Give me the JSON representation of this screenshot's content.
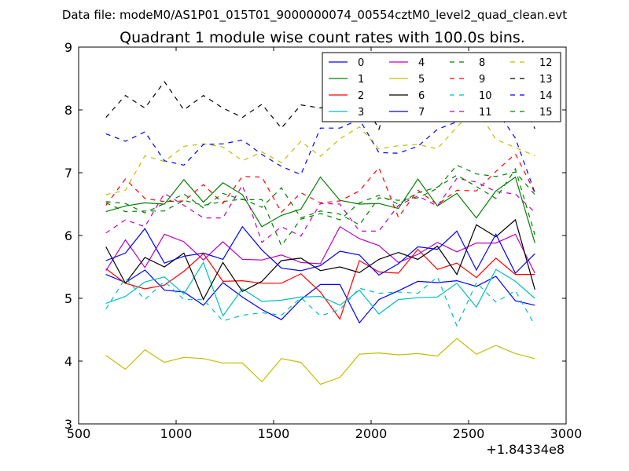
{
  "suptitle": "Data file: modeM0/AS1P01_015T01_9000000074_00554cztM0_level2_quad_clean.evt",
  "chart_data": {
    "type": "line",
    "title": "Quadrant 1 module wise count rates with 100.0s bins.",
    "xlabel": "",
    "ylabel": "",
    "x_offset_label": "+1.84334e8",
    "xlim": [
      500,
      3000
    ],
    "ylim": [
      3,
      9
    ],
    "xticks": [
      500,
      1000,
      1500,
      2000,
      2500,
      3000
    ],
    "yticks": [
      3,
      4,
      5,
      6,
      7,
      8,
      9
    ],
    "legend_position": "top-right",
    "x": [
      640,
      740,
      840,
      940,
      1040,
      1140,
      1240,
      1340,
      1440,
      1540,
      1640,
      1740,
      1840,
      1940,
      2040,
      2140,
      2240,
      2340,
      2440,
      2540,
      2640,
      2740,
      2840
    ],
    "series": [
      {
        "name": "0",
        "color": "#0000ff",
        "dash": "solid",
        "values": [
          5.38,
          5.25,
          5.45,
          5.13,
          5.1,
          4.89,
          5.25,
          5.02,
          4.82,
          4.66,
          4.98,
          5.22,
          5.22,
          4.61,
          4.98,
          5.12,
          5.27,
          5.25,
          5.28,
          5.19,
          5.35,
          4.96,
          4.89
        ]
      },
      {
        "name": "1",
        "color": "#008000",
        "dash": "solid",
        "values": [
          6.38,
          6.47,
          6.52,
          6.5,
          6.89,
          6.53,
          6.84,
          6.65,
          6.14,
          6.32,
          6.42,
          6.93,
          6.56,
          6.5,
          6.51,
          6.43,
          6.9,
          6.47,
          6.67,
          6.28,
          6.71,
          6.93,
          5.88
        ]
      },
      {
        "name": "2",
        "color": "#ff0000",
        "dash": "solid",
        "values": [
          5.47,
          5.24,
          5.15,
          5.21,
          5.43,
          5.71,
          5.27,
          5.28,
          5.24,
          5.24,
          5.39,
          5.1,
          4.67,
          5.6,
          5.42,
          5.4,
          5.78,
          5.46,
          5.56,
          5.33,
          5.64,
          5.38,
          5.38
        ]
      },
      {
        "name": "3",
        "color": "#00bfbf",
        "dash": "solid",
        "values": [
          4.92,
          5.03,
          5.26,
          5.34,
          5.07,
          5.57,
          4.72,
          5.15,
          4.95,
          4.97,
          5.02,
          5.03,
          4.89,
          5.13,
          4.75,
          4.98,
          5.01,
          5.02,
          5.24,
          4.86,
          5.46,
          5.27,
          5.0
        ]
      },
      {
        "name": "4",
        "color": "#bf00bf",
        "dash": "solid",
        "values": [
          5.44,
          5.93,
          5.49,
          6.02,
          5.9,
          5.61,
          5.9,
          5.62,
          5.61,
          5.69,
          5.57,
          5.55,
          6.14,
          5.95,
          5.84,
          5.57,
          5.7,
          5.89,
          5.74,
          5.88,
          5.88,
          6.02,
          5.4
        ]
      },
      {
        "name": "5",
        "color": "#bfbf00",
        "dash": "solid",
        "values": [
          4.09,
          3.87,
          4.18,
          3.98,
          4.06,
          4.04,
          3.97,
          3.97,
          3.67,
          4.04,
          3.98,
          3.63,
          3.74,
          4.11,
          4.13,
          4.1,
          4.12,
          4.08,
          4.36,
          4.11,
          4.25,
          4.12,
          4.04
        ]
      },
      {
        "name": "6",
        "color": "#000000",
        "dash": "solid",
        "values": [
          5.82,
          5.24,
          5.65,
          5.5,
          5.72,
          4.98,
          5.57,
          5.11,
          5.27,
          5.6,
          5.64,
          5.44,
          5.5,
          5.41,
          5.62,
          5.73,
          5.62,
          5.83,
          5.38,
          6.17,
          5.98,
          6.25,
          5.14
        ]
      },
      {
        "name": "7",
        "color": "#0000ff",
        "dash": "solid",
        "values": [
          5.6,
          5.72,
          6.11,
          5.56,
          5.67,
          5.72,
          5.62,
          6.14,
          5.77,
          5.48,
          5.44,
          5.52,
          5.75,
          5.69,
          5.37,
          5.55,
          5.82,
          5.78,
          6.07,
          5.45,
          6.02,
          5.4,
          5.71
        ]
      },
      {
        "name": "8",
        "color": "#008000",
        "dash": "dashed",
        "values": [
          6.52,
          6.38,
          6.39,
          6.39,
          6.56,
          6.48,
          6.54,
          6.58,
          6.45,
          6.76,
          6.28,
          6.39,
          6.34,
          6.17,
          6.6,
          6.56,
          6.6,
          6.75,
          7.12,
          6.98,
          6.94,
          7.01,
          6.65
        ]
      },
      {
        "name": "9",
        "color": "#ff0000",
        "dash": "dashed",
        "values": [
          6.48,
          6.9,
          6.59,
          6.54,
          6.55,
          6.81,
          6.51,
          6.94,
          6.93,
          6.37,
          6.68,
          6.52,
          6.55,
          6.71,
          7.08,
          6.29,
          6.72,
          6.49,
          6.72,
          6.71,
          7.02,
          7.3,
          6.68
        ]
      },
      {
        "name": "10",
        "color": "#00bfbf",
        "dash": "dashed",
        "values": [
          4.83,
          5.32,
          4.98,
          5.27,
          4.98,
          4.98,
          4.64,
          4.73,
          4.77,
          4.73,
          5.01,
          4.72,
          4.82,
          5.16,
          5.08,
          5.1,
          5.08,
          5.34,
          4.56,
          5.25,
          4.94,
          5.12,
          4.57
        ]
      },
      {
        "name": "11",
        "color": "#bf00bf",
        "dash": "dashed",
        "values": [
          6.04,
          6.25,
          6.14,
          6.67,
          6.48,
          6.28,
          6.28,
          6.8,
          5.89,
          6.14,
          5.99,
          6.51,
          6.5,
          6.07,
          6.07,
          6.48,
          6.63,
          6.47,
          6.91,
          6.85,
          6.7,
          6.66,
          6.37
        ]
      },
      {
        "name": "12",
        "color": "#bfbf00",
        "dash": "dashed",
        "values": [
          6.65,
          6.72,
          7.27,
          7.18,
          7.42,
          7.46,
          7.41,
          7.19,
          7.33,
          7.16,
          7.5,
          7.26,
          7.54,
          7.73,
          7.38,
          7.43,
          7.45,
          7.38,
          7.73,
          8.03,
          7.53,
          7.4,
          7.27
        ]
      },
      {
        "name": "13",
        "color": "#000000",
        "dash": "dashed",
        "values": [
          7.88,
          8.23,
          8.03,
          8.45,
          8.0,
          8.23,
          8.03,
          7.88,
          8.09,
          7.71,
          8.08,
          8.03,
          8.11,
          8.28,
          7.69,
          8.68,
          8.27,
          8.08,
          8.33,
          8.34,
          7.95,
          8.37,
          7.7
        ]
      },
      {
        "name": "14",
        "color": "#0000ff",
        "dash": "dashed",
        "values": [
          7.62,
          7.5,
          7.65,
          7.19,
          7.12,
          7.45,
          7.46,
          7.52,
          7.29,
          7.1,
          6.97,
          7.71,
          7.71,
          7.85,
          7.32,
          7.31,
          7.42,
          7.69,
          7.81,
          8.11,
          8.01,
          7.55,
          6.68
        ]
      },
      {
        "name": "15",
        "color": "#008000",
        "dash": "dashed",
        "values": [
          6.54,
          6.51,
          6.36,
          6.51,
          6.66,
          6.44,
          6.67,
          6.57,
          6.57,
          5.84,
          6.26,
          6.35,
          6.25,
          6.52,
          6.64,
          6.5,
          6.68,
          6.77,
          6.96,
          6.78,
          6.59,
          7.06,
          6.01
        ]
      }
    ]
  }
}
